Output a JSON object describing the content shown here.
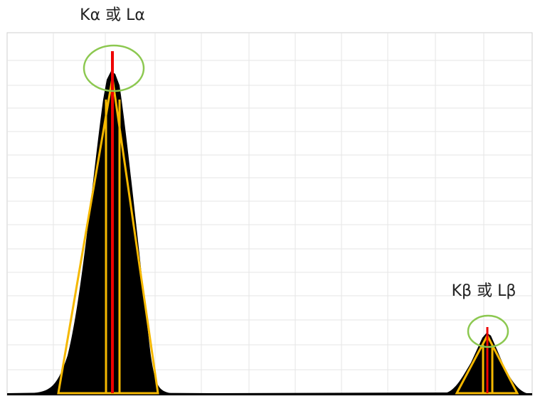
{
  "labels": {
    "alpha_peak": "Kα 或 Lα",
    "beta_peak": "Kβ 或 Lβ"
  }
}
